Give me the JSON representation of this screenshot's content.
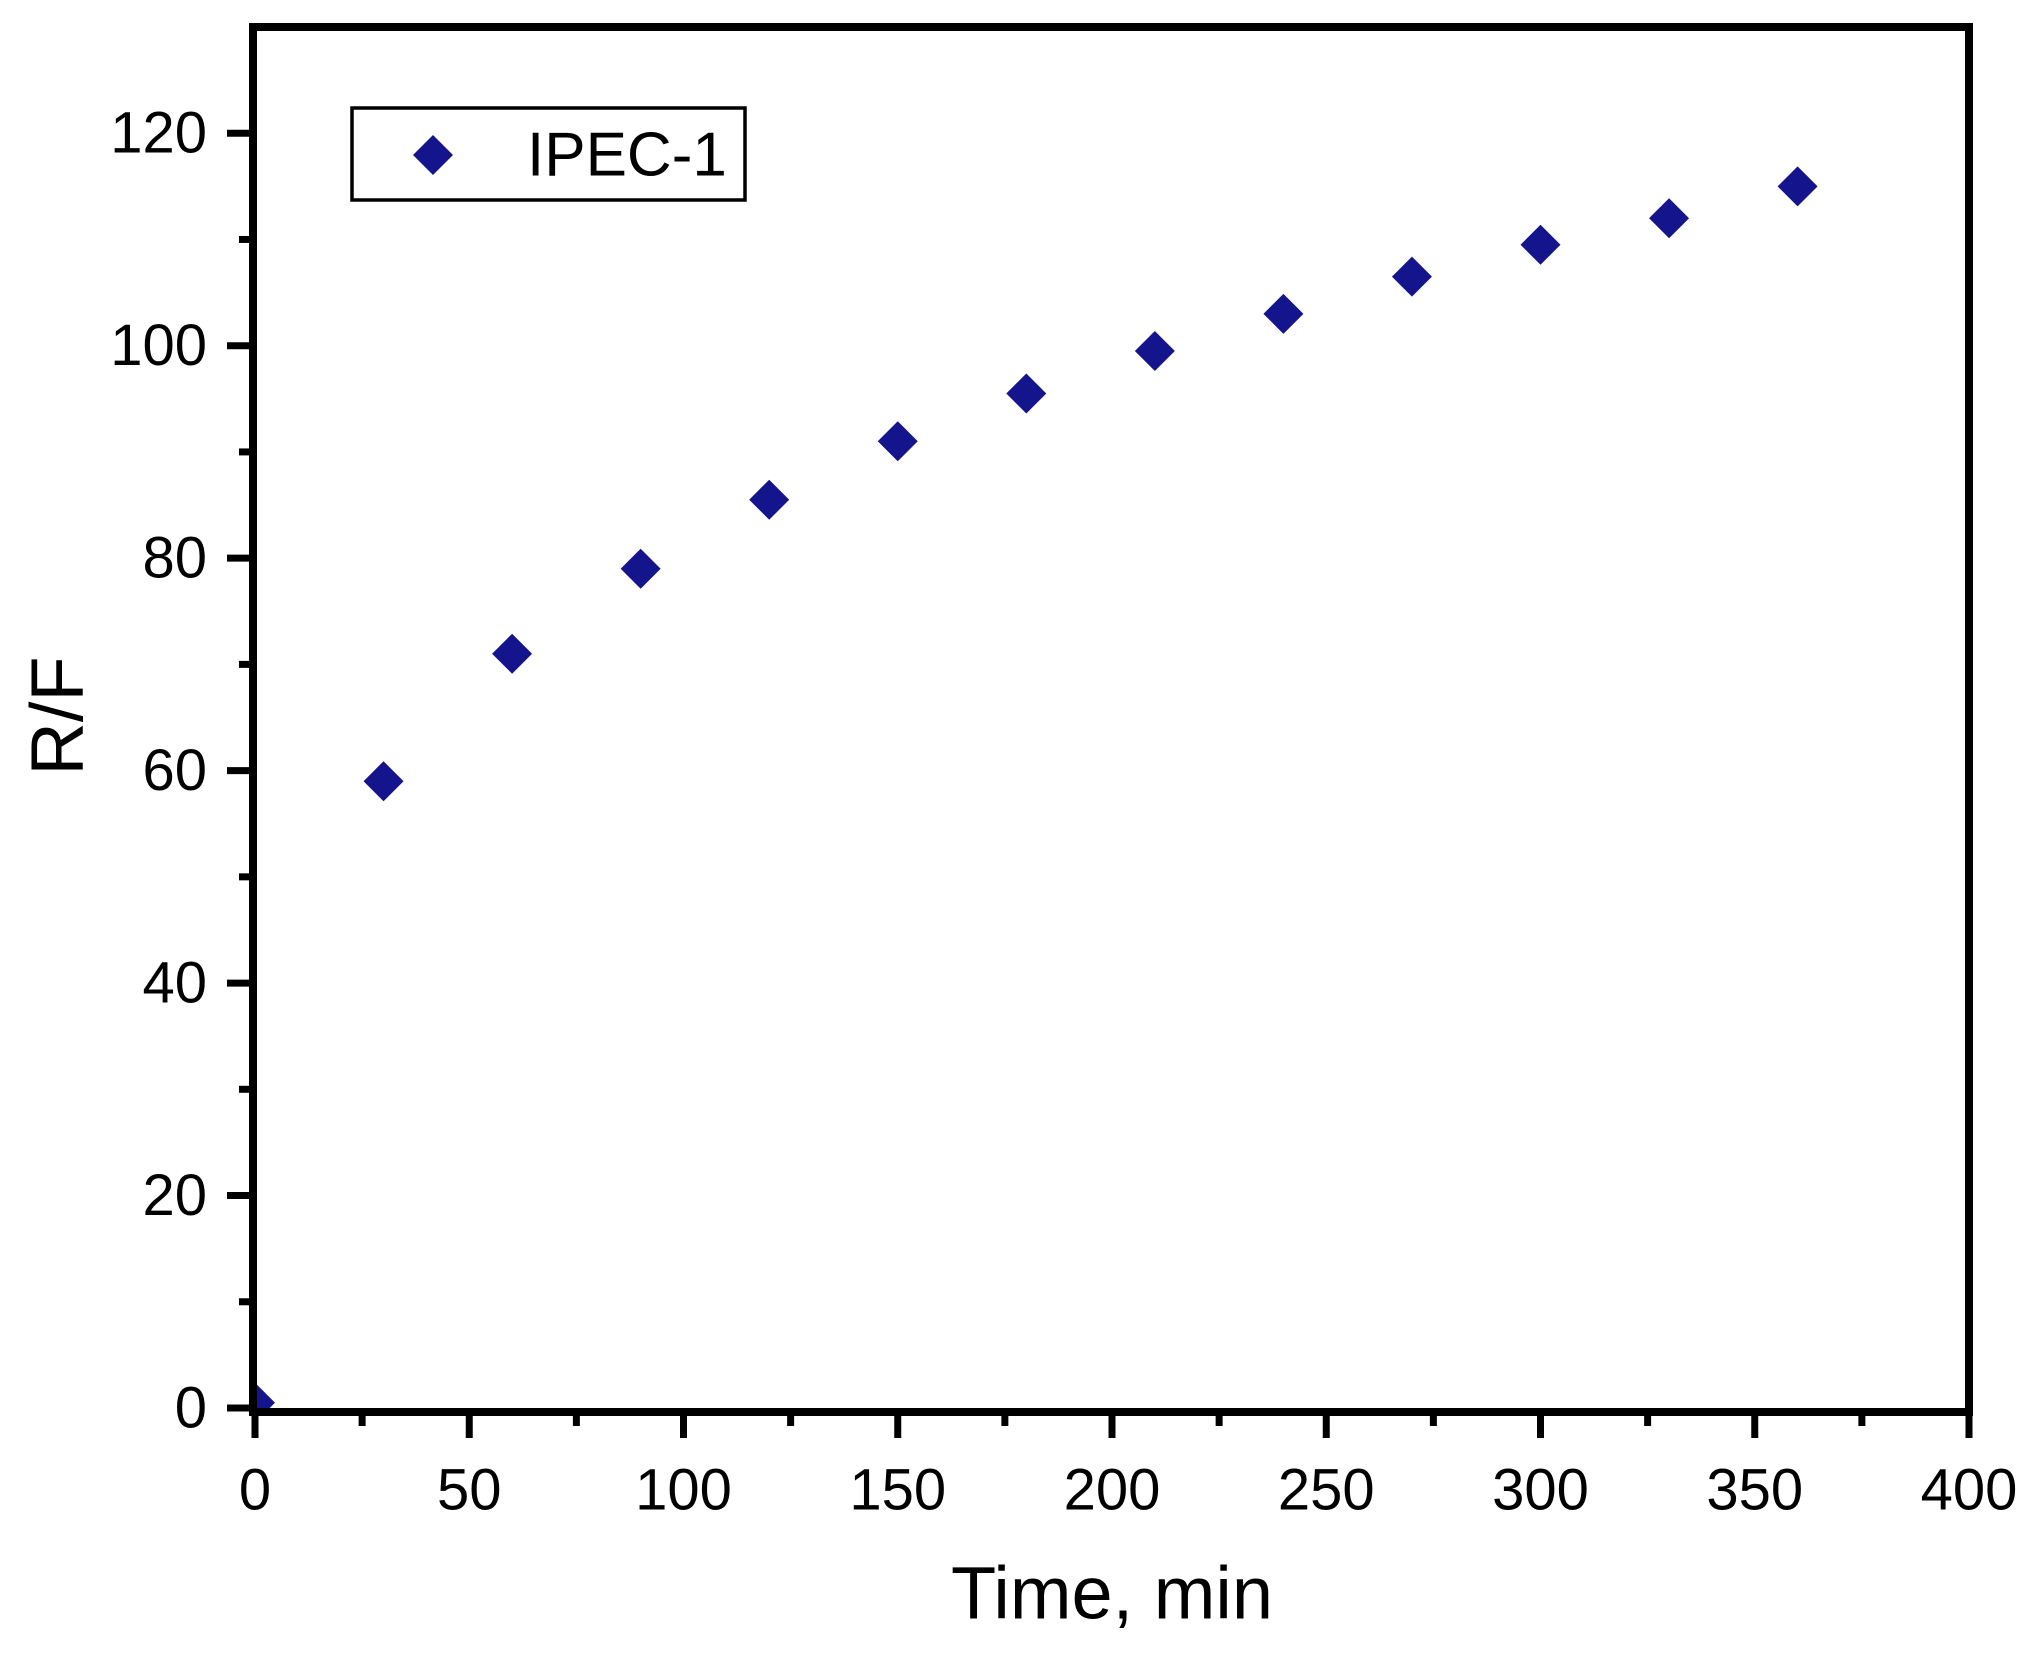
{
  "chart_data": {
    "type": "scatter",
    "title": "",
    "xlabel": "Time, min",
    "ylabel": "R/F",
    "xlim": [
      0,
      400
    ],
    "ylim": [
      0,
      130
    ],
    "grid": false,
    "frame": true,
    "x_axis": {
      "major_ticks": [
        0,
        50,
        100,
        150,
        200,
        250,
        300,
        350,
        400
      ],
      "minor_ticks": [
        25,
        75,
        125,
        175,
        225,
        275,
        325,
        375
      ]
    },
    "y_axis": {
      "major_ticks": [
        0,
        20,
        40,
        60,
        80,
        100,
        120
      ],
      "minor_ticks": [
        10,
        30,
        50,
        70,
        90,
        110,
        130
      ]
    },
    "legend": {
      "position": "top-left-inside",
      "entries": [
        {
          "label": "IPEC-1",
          "marker": "diamond",
          "color": "#14148c"
        }
      ]
    },
    "series": [
      {
        "name": "IPEC-1",
        "marker": "diamond",
        "color": "#14148c",
        "points": [
          [
            0,
            0.5
          ],
          [
            30,
            59
          ],
          [
            60,
            71
          ],
          [
            90,
            79
          ],
          [
            120,
            85.5
          ],
          [
            150,
            91
          ],
          [
            180,
            95.5
          ],
          [
            210,
            99.5
          ],
          [
            240,
            103
          ],
          [
            270,
            106.5
          ],
          [
            300,
            109.5
          ],
          [
            330,
            112
          ],
          [
            360,
            115
          ]
        ]
      }
    ]
  },
  "colors": {
    "marker": "#14148c",
    "axis": "#000000",
    "background": "#ffffff",
    "legend_background": "#ffffff",
    "legend_border": "#000000"
  }
}
